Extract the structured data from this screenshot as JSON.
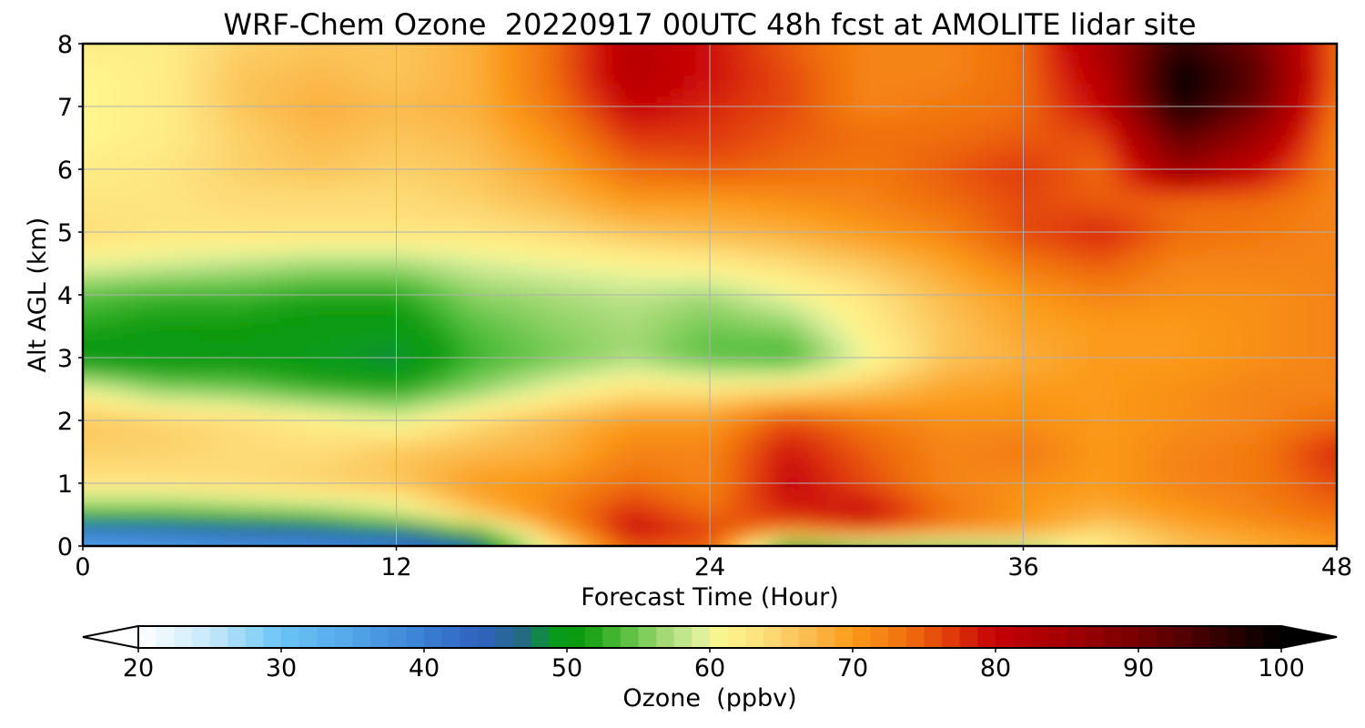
{
  "chart_data": {
    "type": "heatmap",
    "title": "WRF-Chem Ozone  20220917 00UTC 48h fcst at AMOLITE lidar site",
    "xlabel": "Forecast Time (Hour)",
    "ylabel": "Alt AGL (km)",
    "xlim": [
      0,
      48
    ],
    "ylim": [
      0,
      8
    ],
    "x_ticks": [
      "0",
      "12",
      "24",
      "36",
      "48"
    ],
    "y_ticks": [
      "0",
      "1",
      "2",
      "3",
      "4",
      "5",
      "6",
      "7",
      "8"
    ],
    "grid": true,
    "x": [
      0,
      3,
      6,
      9,
      12,
      15,
      18,
      21,
      24,
      27,
      30,
      33,
      36,
      39,
      42,
      45,
      48
    ],
    "y": [
      0,
      0.25,
      0.5,
      1,
      1.5,
      2,
      2.5,
      3,
      3.5,
      4,
      4.5,
      5,
      5.5,
      6,
      6.5,
      7,
      7.5,
      8
    ],
    "z": [
      [
        35,
        36,
        37,
        38,
        40,
        45,
        62,
        75,
        74,
        50,
        54,
        55,
        56,
        62,
        66,
        68,
        70
      ],
      [
        41,
        42,
        44,
        45,
        47,
        53,
        68,
        80,
        77,
        72,
        75,
        71,
        70,
        64,
        68,
        70,
        72
      ],
      [
        53,
        53,
        54,
        55,
        58,
        66,
        72,
        78,
        74,
        78,
        80,
        74,
        70,
        68,
        70,
        72,
        74
      ],
      [
        63,
        63,
        64,
        65,
        66,
        70,
        71,
        74,
        72,
        80,
        76,
        72,
        71,
        70,
        72,
        73,
        76
      ],
      [
        65,
        65,
        64,
        64,
        66,
        67,
        68,
        72,
        72,
        79,
        75,
        72,
        73,
        70,
        72,
        73,
        78
      ],
      [
        66,
        65,
        64,
        62,
        60,
        64,
        67,
        70,
        70,
        76,
        73,
        71,
        71,
        70,
        71,
        72,
        74
      ],
      [
        60,
        56,
        55,
        53,
        52,
        56,
        60,
        63,
        63,
        64,
        66,
        69,
        70,
        70,
        71,
        72,
        72
      ],
      [
        49,
        49,
        50,
        49,
        48,
        53,
        55,
        57,
        54,
        53,
        60,
        66,
        68,
        70,
        70,
        71,
        72
      ],
      [
        52,
        51,
        51,
        50,
        50,
        54,
        56,
        57,
        55,
        56,
        62,
        66,
        69,
        70,
        70,
        71,
        72
      ],
      [
        54,
        53,
        53,
        52,
        52,
        56,
        57,
        58,
        57,
        60,
        63,
        67,
        70,
        72,
        71,
        71,
        72
      ],
      [
        60,
        59,
        58,
        57,
        57,
        59,
        60,
        61,
        62,
        64,
        66,
        69,
        73,
        75,
        72,
        72,
        72
      ],
      [
        64,
        63,
        63,
        63,
        63,
        63,
        64,
        66,
        67,
        68,
        70,
        72,
        76,
        78,
        74,
        73,
        72
      ],
      [
        63,
        63,
        64,
        64,
        64,
        65,
        67,
        70,
        70,
        71,
        72,
        74,
        76,
        75,
        74,
        74,
        72
      ],
      [
        62,
        63,
        65,
        66,
        65,
        66,
        69,
        74,
        75,
        74,
        73,
        75,
        77,
        74,
        86,
        80,
        72
      ],
      [
        61,
        62,
        65,
        67,
        66,
        67,
        71,
        77,
        77,
        75,
        74,
        74,
        75,
        76,
        92,
        85,
        72
      ],
      [
        61,
        62,
        66,
        68,
        67,
        68,
        73,
        80,
        78,
        76,
        72,
        73,
        74,
        80,
        98,
        90,
        73
      ],
      [
        61,
        62,
        66,
        67,
        66,
        68,
        74,
        82,
        79,
        76,
        72,
        72,
        74,
        82,
        100,
        92,
        74
      ],
      [
        62,
        62,
        65,
        66,
        66,
        68,
        74,
        82,
        79,
        75,
        72,
        72,
        74,
        84,
        96,
        90,
        74
      ]
    ],
    "colorbar": {
      "label": "Ozone  (ppbv)",
      "min": 20,
      "max": 100,
      "ticks": [
        "20",
        "30",
        "40",
        "50",
        "60",
        "70",
        "80",
        "90",
        "100"
      ],
      "extend": "both",
      "colors": [
        {
          "v": 20,
          "c": "#ffffff"
        },
        {
          "v": 25,
          "c": "#c6e9fa"
        },
        {
          "v": 30,
          "c": "#6ac4f5"
        },
        {
          "v": 35,
          "c": "#52a6e8"
        },
        {
          "v": 40,
          "c": "#3b7fd4"
        },
        {
          "v": 44,
          "c": "#2f62c0"
        },
        {
          "v": 47,
          "c": "#236a80"
        },
        {
          "v": 49,
          "c": "#079b1f"
        },
        {
          "v": 51,
          "c": "#0c9a0c"
        },
        {
          "v": 54,
          "c": "#55bf3e"
        },
        {
          "v": 57,
          "c": "#a7da77"
        },
        {
          "v": 59,
          "c": "#d6ee9b"
        },
        {
          "v": 61,
          "c": "#fff68e"
        },
        {
          "v": 64,
          "c": "#fddc78"
        },
        {
          "v": 67,
          "c": "#fbba4c"
        },
        {
          "v": 70,
          "c": "#fb9a1a"
        },
        {
          "v": 74,
          "c": "#ef6d0d"
        },
        {
          "v": 77,
          "c": "#df380a"
        },
        {
          "v": 80,
          "c": "#c40006"
        },
        {
          "v": 85,
          "c": "#a30000"
        },
        {
          "v": 90,
          "c": "#760000"
        },
        {
          "v": 95,
          "c": "#3d0000"
        },
        {
          "v": 100,
          "c": "#000000"
        }
      ]
    }
  }
}
